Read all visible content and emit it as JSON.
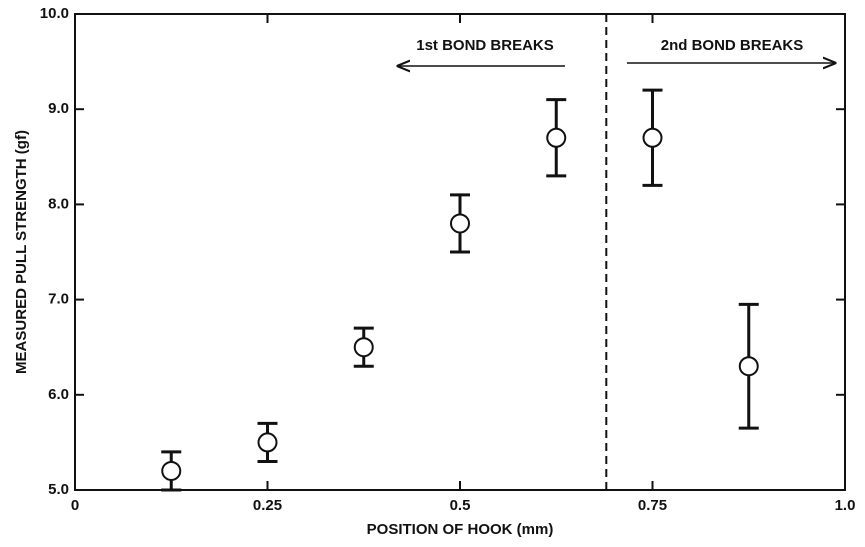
{
  "chart_data": {
    "type": "scatter",
    "xlabel": "POSITION OF HOOK (mm)",
    "ylabel": "MEASURED PULL STRENGTH (gf)",
    "xlim": [
      0,
      1
    ],
    "ylim": [
      5,
      10
    ],
    "xticks": [
      0,
      0.25,
      0.5,
      0.75,
      {
        "value": 1,
        "label": "1.0"
      }
    ],
    "yticks": [
      {
        "value": 5,
        "label": "5.0"
      },
      {
        "value": 6,
        "label": "6.0"
      },
      {
        "value": 7,
        "label": "7.0"
      },
      {
        "value": 8,
        "label": "8.0"
      },
      {
        "value": 9,
        "label": "9.0"
      },
      {
        "value": 10,
        "label": "10.0"
      }
    ],
    "x": [
      0.125,
      0.25,
      0.375,
      0.5,
      0.625,
      0.75,
      0.875
    ],
    "values": [
      5.2,
      5.5,
      6.5,
      7.8,
      8.7,
      8.7,
      6.3
    ],
    "errors": [
      0.2,
      0.2,
      0.2,
      0.3,
      0.4,
      0.5,
      0.65
    ],
    "color": "#111111",
    "divider_x": 0.69,
    "annotations": [
      "1st BOND BREAKS",
      "2nd BOND BREAKS"
    ]
  }
}
